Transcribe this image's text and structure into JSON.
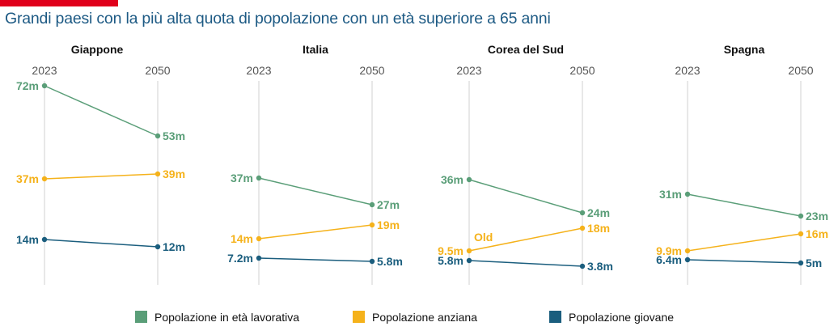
{
  "title": "Grandi paesi con la più alta quota di popolazione con un età superiore a 65 anni",
  "colors": {
    "working": "#5a9e78",
    "elderly": "#f5b21b",
    "young": "#1b5e7e",
    "gridline": "#d0d0d0",
    "axis_text": "#555555",
    "title": "#1d5a84",
    "topbar": "#e0001b"
  },
  "chart_data": {
    "type": "line",
    "x": [
      "2023",
      "2050"
    ],
    "ylim": [
      0,
      80
    ],
    "legend": [
      {
        "key": "working",
        "label": "Popolazione in età lavorativa"
      },
      {
        "key": "elderly",
        "label": "Popolazione anziana"
      },
      {
        "key": "young",
        "label": "Popolazione giovane"
      }
    ],
    "panels": [
      {
        "country": "Giappone",
        "series": [
          {
            "key": "working",
            "values": [
              72,
              53
            ],
            "labels": [
              "72m",
              "53m"
            ]
          },
          {
            "key": "elderly",
            "values": [
              37,
              39
            ],
            "labels": [
              "37m",
              "39m"
            ]
          },
          {
            "key": "young",
            "values": [
              14,
              12
            ],
            "labels": [
              "14m",
              "12m"
            ]
          }
        ]
      },
      {
        "country": "Italia",
        "series": [
          {
            "key": "working",
            "values": [
              37,
              27
            ],
            "labels": [
              "37m",
              "27m"
            ]
          },
          {
            "key": "elderly",
            "values": [
              14,
              19
            ],
            "labels": [
              "14m",
              "19m"
            ]
          },
          {
            "key": "young",
            "values": [
              7.2,
              5.8
            ],
            "labels": [
              "7.2m",
              "5.8m"
            ]
          }
        ]
      },
      {
        "country": "Corea del Sud",
        "annotation": "Old",
        "series": [
          {
            "key": "working",
            "values": [
              36,
              24
            ],
            "labels": [
              "36m",
              "24m"
            ]
          },
          {
            "key": "elderly",
            "values": [
              9.5,
              18
            ],
            "labels": [
              "9.5m",
              "18m"
            ]
          },
          {
            "key": "young",
            "values": [
              5.8,
              3.8
            ],
            "labels": [
              "5.8m",
              "3.8m"
            ]
          }
        ]
      },
      {
        "country": "Spagna",
        "series": [
          {
            "key": "working",
            "values": [
              31,
              23
            ],
            "labels": [
              "31m",
              "23m"
            ]
          },
          {
            "key": "elderly",
            "values": [
              9.9,
              16
            ],
            "labels": [
              "9.9m",
              "16m"
            ]
          },
          {
            "key": "young",
            "values": [
              6.4,
              5
            ],
            "labels": [
              "6.4m",
              "5m"
            ]
          }
        ]
      }
    ]
  }
}
